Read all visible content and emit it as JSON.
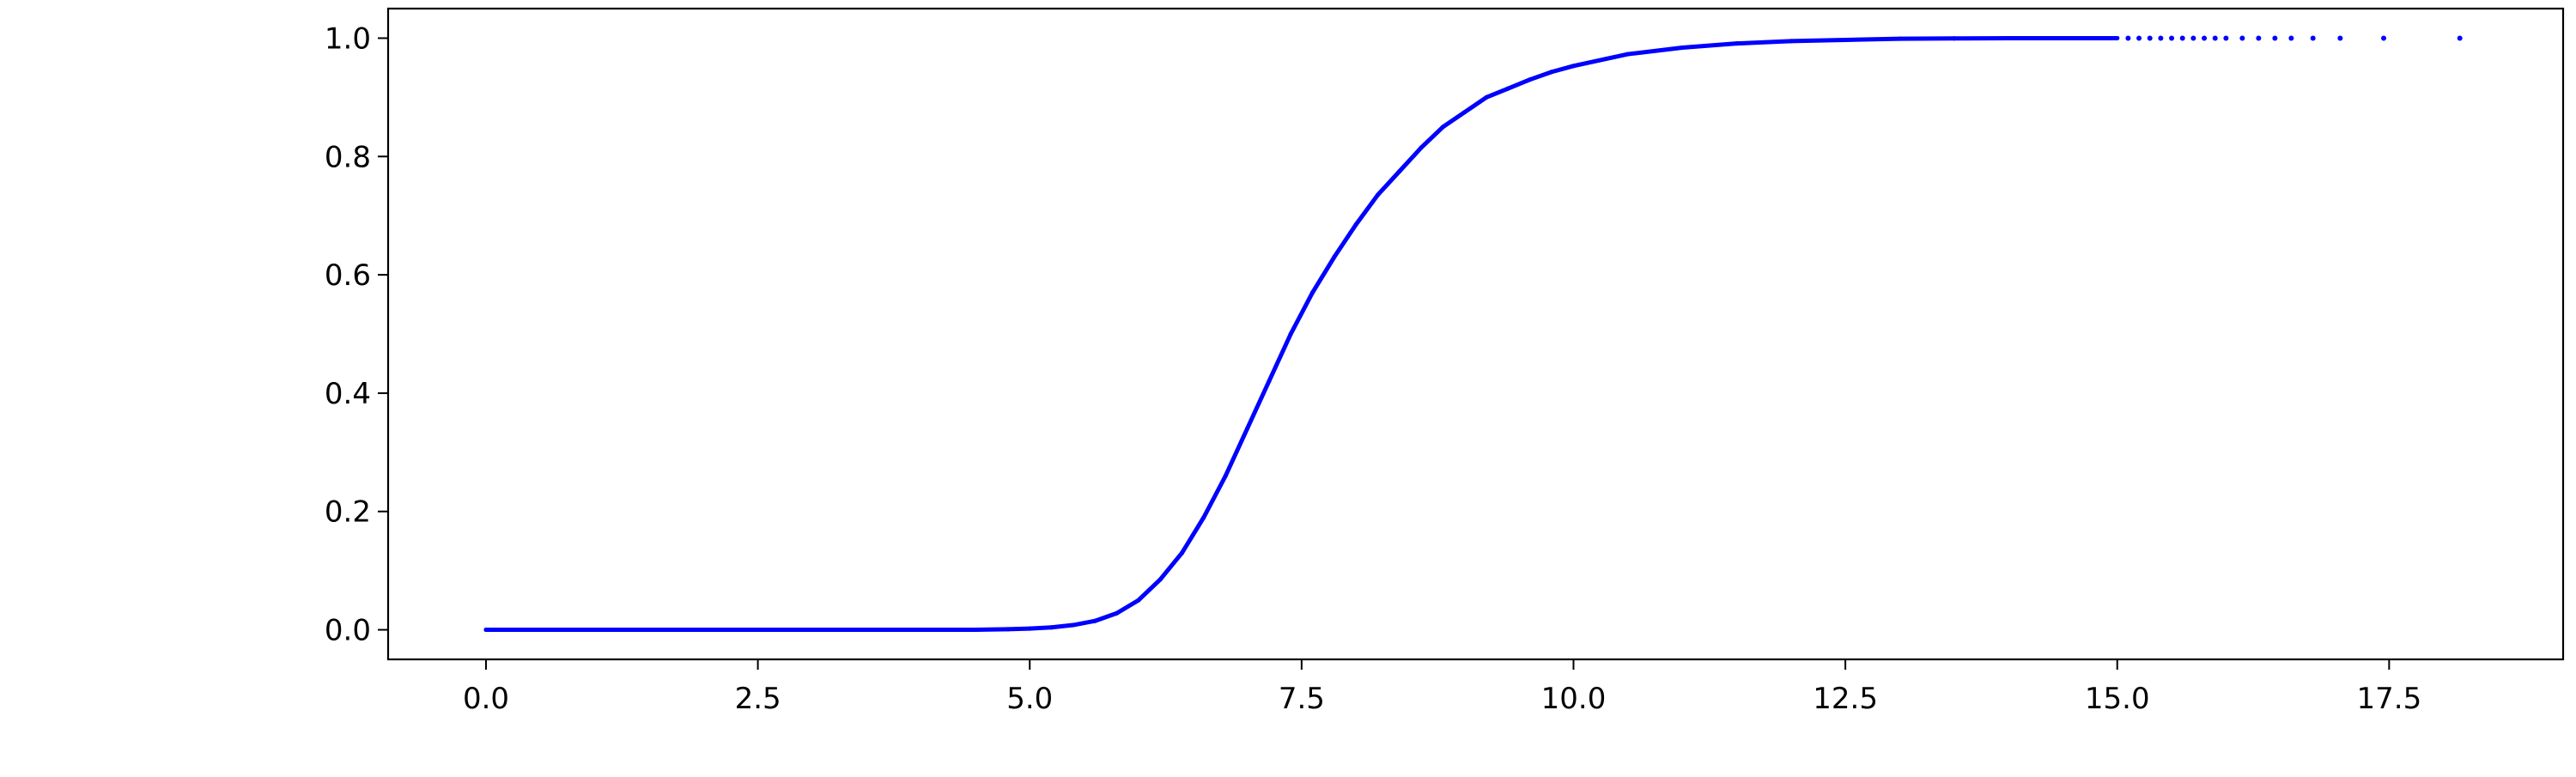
{
  "chart_data": {
    "type": "scatter",
    "title": "",
    "xlabel": "",
    "ylabel": "",
    "xlim": [
      -0.9,
      19.1
    ],
    "ylim": [
      -0.05,
      1.05
    ],
    "grid": false,
    "x_ticks": [
      0.0,
      2.5,
      5.0,
      7.5,
      10.0,
      12.5,
      15.0,
      17.5
    ],
    "x_tick_labels": [
      "0.0",
      "2.5",
      "5.0",
      "7.5",
      "10.0",
      "12.5",
      "15.0",
      "17.5"
    ],
    "y_ticks": [
      0.0,
      0.2,
      0.4,
      0.6,
      0.8,
      1.0
    ],
    "y_tick_labels": [
      "0.0",
      "0.2",
      "0.4",
      "0.6",
      "0.8",
      "1.0"
    ],
    "series": [
      {
        "color": "#0000ff",
        "marker": "dot",
        "points": [
          [
            0.0,
            0.0
          ],
          [
            1.0,
            0.0
          ],
          [
            2.0,
            0.0
          ],
          [
            3.0,
            0.0
          ],
          [
            4.0,
            0.0
          ],
          [
            4.5,
            0.0
          ],
          [
            4.8,
            0.001
          ],
          [
            5.0,
            0.002
          ],
          [
            5.2,
            0.004
          ],
          [
            5.4,
            0.008
          ],
          [
            5.6,
            0.015
          ],
          [
            5.8,
            0.028
          ],
          [
            6.0,
            0.05
          ],
          [
            6.2,
            0.085
          ],
          [
            6.4,
            0.13
          ],
          [
            6.6,
            0.19
          ],
          [
            6.8,
            0.26
          ],
          [
            7.0,
            0.34
          ],
          [
            7.2,
            0.42
          ],
          [
            7.4,
            0.5
          ],
          [
            7.6,
            0.57
          ],
          [
            7.8,
            0.63
          ],
          [
            8.0,
            0.685
          ],
          [
            8.2,
            0.735
          ],
          [
            8.4,
            0.775
          ],
          [
            8.6,
            0.815
          ],
          [
            8.8,
            0.85
          ],
          [
            9.0,
            0.875
          ],
          [
            9.2,
            0.9
          ],
          [
            9.4,
            0.915
          ],
          [
            9.6,
            0.93
          ],
          [
            9.8,
            0.943
          ],
          [
            10.0,
            0.953
          ],
          [
            10.5,
            0.973
          ],
          [
            11.0,
            0.984
          ],
          [
            11.5,
            0.991
          ],
          [
            12.0,
            0.995
          ],
          [
            12.5,
            0.997
          ],
          [
            13.0,
            0.999
          ],
          [
            13.5,
            0.9995
          ],
          [
            14.0,
            1.0
          ],
          [
            14.5,
            1.0
          ],
          [
            15.0,
            1.0
          ],
          [
            15.1,
            1.0
          ],
          [
            15.2,
            1.0
          ],
          [
            15.3,
            1.0
          ],
          [
            15.4,
            1.0
          ],
          [
            15.5,
            1.0
          ],
          [
            15.6,
            1.0
          ],
          [
            15.7,
            1.0
          ],
          [
            15.8,
            1.0
          ],
          [
            15.9,
            1.0
          ],
          [
            16.0,
            1.0
          ],
          [
            16.15,
            1.0
          ],
          [
            16.3,
            1.0
          ],
          [
            16.45,
            1.0
          ],
          [
            16.6,
            1.0
          ],
          [
            16.8,
            1.0
          ],
          [
            17.05,
            1.0
          ],
          [
            17.45,
            1.0
          ],
          [
            18.15,
            1.0
          ]
        ]
      }
    ]
  }
}
